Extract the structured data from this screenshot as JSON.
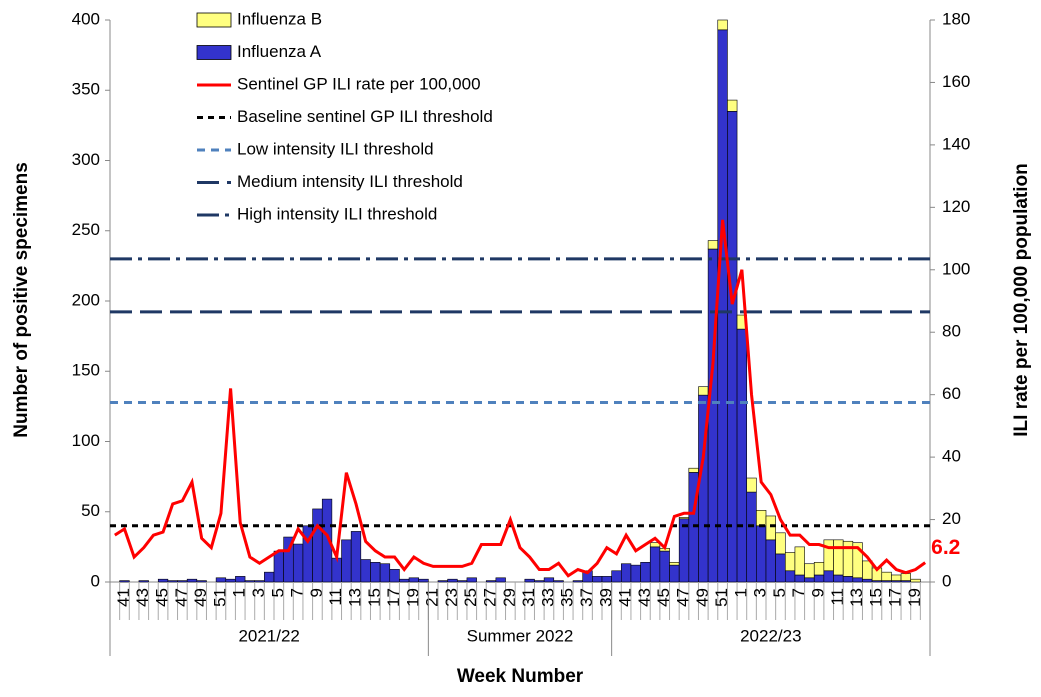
{
  "chart_data": {
    "type": "combo",
    "y_label": "Number of positive specimens",
    "y2_label": "ILI rate per 100,000 population",
    "x_label": "Week Number",
    "ylim": [
      0,
      400
    ],
    "yticks": [
      0,
      50,
      100,
      150,
      200,
      250,
      300,
      350,
      400
    ],
    "y2lim": [
      0,
      180
    ],
    "y2ticks": [
      0,
      20,
      40,
      60,
      80,
      100,
      120,
      140,
      160,
      180
    ],
    "categories": [
      null,
      "41",
      null,
      "43",
      null,
      "45",
      null,
      "47",
      null,
      "49",
      null,
      "51",
      null,
      "1",
      null,
      "3",
      null,
      "5",
      null,
      "7",
      null,
      "9",
      null,
      "11",
      null,
      "13",
      null,
      "15",
      null,
      "17",
      null,
      "19",
      null,
      "21",
      null,
      "23",
      null,
      "25",
      null,
      "27",
      null,
      "29",
      null,
      "31",
      null,
      "33",
      null,
      "35",
      null,
      "37",
      null,
      "39",
      null,
      "41",
      null,
      "43",
      null,
      "45",
      null,
      "47",
      null,
      "49",
      null,
      "51",
      null,
      "1",
      null,
      "3",
      null,
      "5",
      null,
      "7",
      null,
      "9",
      null,
      "11",
      null,
      "13",
      null,
      "15",
      null,
      "17",
      null,
      "19",
      null
    ],
    "groups": [
      {
        "label": "2021/22",
        "weeks": 33
      },
      {
        "label": "Summer 2022",
        "weeks": 19
      },
      {
        "label": "2022/23",
        "weeks": 33
      }
    ],
    "series": [
      {
        "name": "Influenza B",
        "type": "bar",
        "color": "#ffff80",
        "values": [
          0,
          0,
          0,
          0,
          0,
          0,
          0,
          0,
          0,
          0,
          0,
          0,
          0,
          0,
          0,
          0,
          0,
          0,
          0,
          0,
          0,
          0,
          0,
          0,
          0,
          0,
          0,
          0,
          0,
          0,
          0,
          0,
          0,
          0,
          0,
          0,
          0,
          0,
          0,
          0,
          0,
          0,
          0,
          0,
          0,
          0,
          0,
          0,
          0,
          0,
          0,
          0,
          0,
          0,
          0,
          0,
          3,
          2,
          2,
          1,
          3,
          6,
          6,
          7,
          8,
          10,
          10,
          11,
          17,
          15,
          13,
          20,
          10,
          9,
          22,
          25,
          25,
          25,
          13,
          9,
          6,
          4,
          5,
          2,
          0
        ]
      },
      {
        "name": "Influenza A",
        "type": "bar",
        "color": "#3333cc",
        "values": [
          0,
          1,
          0,
          1,
          0,
          2,
          1,
          1,
          2,
          1,
          0,
          3,
          2,
          4,
          1,
          1,
          7,
          22,
          32,
          27,
          40,
          52,
          59,
          17,
          30,
          36,
          16,
          14,
          13,
          9,
          2,
          3,
          2,
          0,
          1,
          2,
          1,
          3,
          0,
          1,
          3,
          0,
          0,
          2,
          1,
          3,
          1,
          0,
          1,
          8,
          4,
          4,
          8,
          13,
          12,
          14,
          25,
          22,
          12,
          45,
          78,
          133,
          237,
          393,
          335,
          180,
          64,
          40,
          30,
          20,
          8,
          5,
          3,
          5,
          8,
          5,
          4,
          3,
          2,
          1,
          1,
          1,
          1,
          0,
          0
        ]
      },
      {
        "name": "Sentinel GP ILI rate per 100,000",
        "type": "line",
        "axis": "y2",
        "color": "#ff0000",
        "values": [
          15,
          17,
          8,
          11,
          15,
          16,
          25,
          26,
          32,
          14,
          11,
          22,
          62,
          19,
          8,
          6,
          8,
          10,
          10,
          17,
          13,
          18,
          15,
          8,
          35,
          25,
          13,
          10,
          8,
          8,
          4,
          8,
          6,
          5,
          5,
          5,
          5,
          6,
          12,
          12,
          12,
          20,
          11,
          8,
          4,
          4,
          6,
          2,
          4,
          3,
          6,
          11,
          9,
          15,
          10,
          12,
          14,
          11,
          21,
          22,
          22,
          40,
          70,
          116,
          89,
          100,
          60,
          32,
          28,
          20,
          15,
          15,
          12,
          12,
          11,
          11,
          11,
          11,
          8,
          4,
          7,
          4,
          3,
          4,
          6.2
        ],
        "value_labels": [
          null,
          null,
          null,
          null,
          null,
          null,
          null,
          null,
          null,
          null,
          null,
          null,
          null,
          null,
          null,
          null,
          null,
          null,
          null,
          null,
          null,
          null,
          null,
          null,
          null,
          null,
          null,
          null,
          null,
          null,
          null,
          null,
          null,
          null,
          null,
          null,
          null,
          null,
          null,
          null,
          null,
          null,
          null,
          null,
          null,
          null,
          null,
          null,
          null,
          null,
          null,
          null,
          null,
          null,
          null,
          null,
          null,
          null,
          null,
          null,
          null,
          null,
          null,
          null,
          null,
          null,
          null,
          null,
          null,
          null,
          null,
          null,
          null,
          null,
          null,
          null,
          null,
          null,
          null,
          null,
          null,
          null,
          null,
          null,
          "6.2"
        ]
      }
    ],
    "thresholds": [
      {
        "name": "Baseline sentinel GP ILI threshold",
        "value": 18,
        "color": "#000000",
        "dash": "6 5"
      },
      {
        "name": "Low intensity ILI threshold",
        "value": 57.5,
        "color": "#4f81bd",
        "dash": "8 6"
      },
      {
        "name": "Medium intensity ILI threshold",
        "value": 86.5,
        "color": "#1f3864",
        "dash": "22 8"
      },
      {
        "name": "High intensity ILI threshold",
        "value": 103.5,
        "color": "#1f3864",
        "dash": "22 6 4 6"
      }
    ]
  }
}
